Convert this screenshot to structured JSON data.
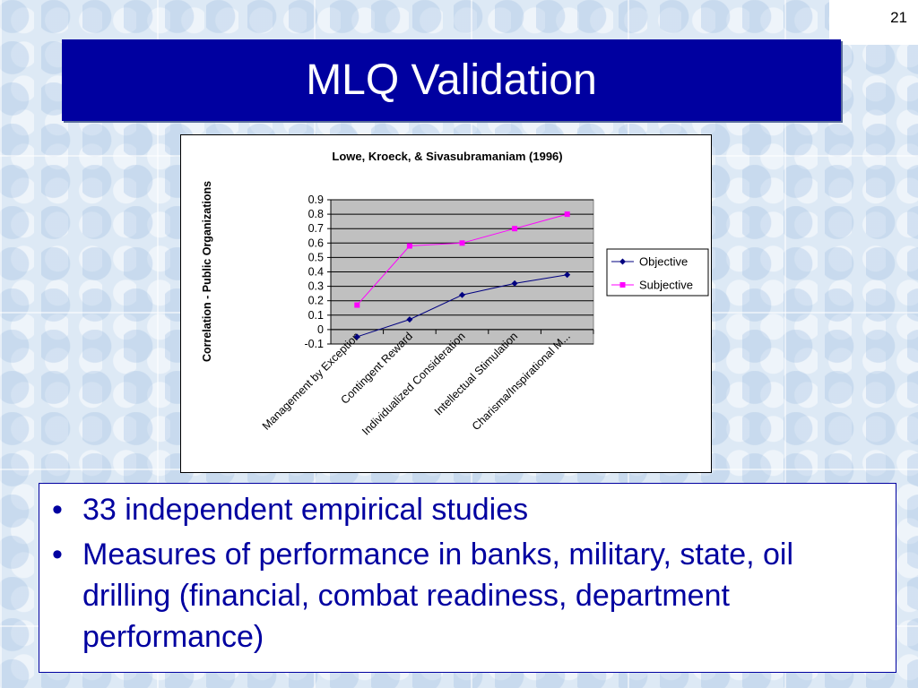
{
  "slide": {
    "number": "21",
    "title": "MLQ Validation",
    "bullets": [
      {
        "marker": "•",
        "text": "33 independent empirical studies"
      },
      {
        "marker": "•",
        "text": "Measures of performance in banks, military, state, oil drilling (financial, combat readiness, department performance)"
      }
    ]
  },
  "chart_data": {
    "type": "line",
    "title": "Lowe, Kroeck, & Sivasubramaniam (1996)",
    "xlabel": "",
    "ylabel": "Correlation - Public Organizations",
    "ylim": [
      -0.1,
      0.9
    ],
    "yticks": [
      "0.9",
      "0.8",
      "0.7",
      "0.6",
      "0.5",
      "0.4",
      "0.3",
      "0.2",
      "0.1",
      "0",
      "-0.1"
    ],
    "categories": [
      "Management by Exception",
      "Contingent Reward",
      "Individualized Consideration",
      "Intellectual Stimulation",
      "Charisma/Inspirational M..."
    ],
    "series": [
      {
        "name": "Objective",
        "values": [
          -0.05,
          0.07,
          0.24,
          0.32,
          0.38
        ],
        "color": "#000080",
        "marker": "diamond"
      },
      {
        "name": "Subjective",
        "values": [
          0.17,
          0.58,
          0.6,
          0.7,
          0.8
        ],
        "color": "#ff00ff",
        "marker": "square"
      }
    ],
    "grid": true,
    "plot_background": "#c0c0c0",
    "legend_position": "right"
  }
}
